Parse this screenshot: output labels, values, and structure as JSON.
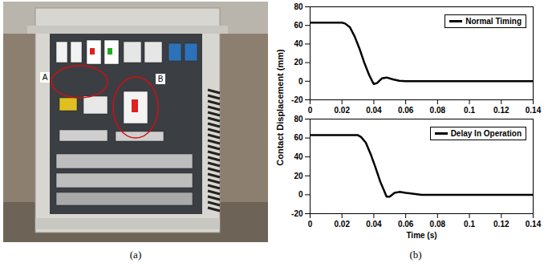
{
  "panel_a": {
    "label": "(a)",
    "annotations": [
      "A",
      "B"
    ]
  },
  "panel_b": {
    "label": "(b)",
    "ylabel": "Contact Displacement (mm)"
  },
  "chart_data": [
    {
      "type": "line",
      "x": [
        0,
        0.01,
        0.02,
        0.022,
        0.025,
        0.028,
        0.031,
        0.034,
        0.037,
        0.039,
        0.04,
        0.042,
        0.045,
        0.048,
        0.052,
        0.056,
        0.06,
        0.07,
        0.08,
        0.1,
        0.12,
        0.14
      ],
      "series": [
        {
          "name": "Normal Timing",
          "color": "#000000",
          "values": [
            63,
            63,
            63,
            62,
            58,
            48,
            35,
            20,
            7,
            0,
            -3,
            -2,
            3,
            4,
            2,
            0.5,
            0,
            0,
            0,
            0,
            0,
            0
          ]
        }
      ],
      "xlim": [
        0,
        0.14
      ],
      "ylim": [
        -20,
        80
      ],
      "xticks": [
        0,
        0.02,
        0.04,
        0.06,
        0.08,
        0.1,
        0.12,
        0.14
      ],
      "yticks": [
        -20,
        0,
        20,
        40,
        60,
        80
      ],
      "legend": "upper right"
    },
    {
      "type": "line",
      "x": [
        0,
        0.01,
        0.02,
        0.03,
        0.032,
        0.035,
        0.038,
        0.041,
        0.044,
        0.047,
        0.048,
        0.05,
        0.053,
        0.056,
        0.06,
        0.065,
        0.07,
        0.08,
        0.1,
        0.12,
        0.14
      ],
      "series": [
        {
          "name": "Delay In Operation",
          "color": "#000000",
          "values": [
            63,
            63,
            63,
            63,
            61,
            55,
            43,
            29,
            14,
            2,
            -2,
            -2,
            2,
            3,
            2,
            1,
            0,
            0,
            0,
            0,
            0
          ]
        }
      ],
      "xlim": [
        0,
        0.14
      ],
      "ylim": [
        -20,
        80
      ],
      "xticks": [
        0,
        0.02,
        0.04,
        0.06,
        0.08,
        0.1,
        0.12,
        0.14
      ],
      "yticks": [
        -20,
        0,
        20,
        40,
        60,
        80
      ],
      "xlabel": "Time (s)",
      "legend": "upper right"
    }
  ]
}
